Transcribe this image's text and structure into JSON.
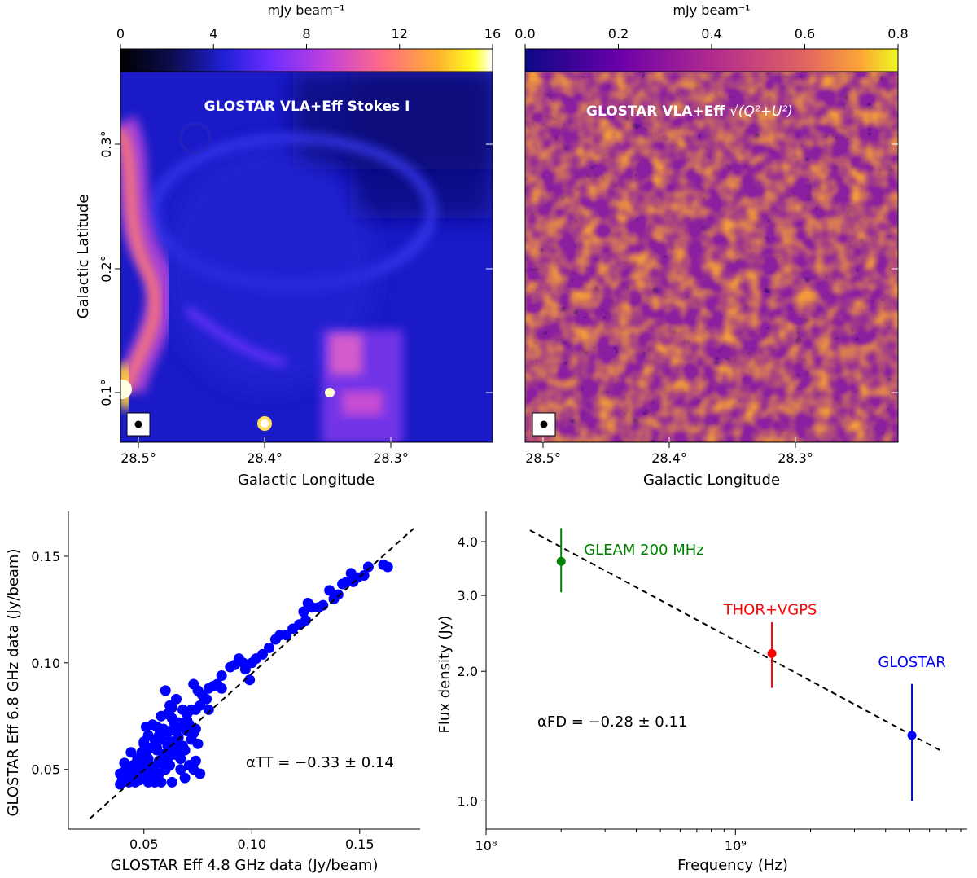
{
  "chart_data": [
    {
      "type": "heatmap",
      "colorbar": {
        "label": "mJy beam⁻¹",
        "ticks": [
          "0",
          "4",
          "8",
          "12",
          "16"
        ],
        "range": [
          0,
          16
        ],
        "colormap": "gnuplot2",
        "placement": "top"
      },
      "title": "GLOSTAR VLA+Eff Stokes I",
      "xlabel": "Galactic Longitude",
      "ylabel": "Galactic Latitude",
      "xticks": [
        "28.5°",
        "28.4°",
        "28.3°"
      ],
      "yticks": [
        "0.1°",
        "0.2°",
        "0.3°"
      ],
      "beam_marker": true
    },
    {
      "type": "heatmap",
      "colorbar": {
        "label": "mJy beam⁻¹",
        "ticks": [
          "0.0",
          "0.2",
          "0.4",
          "0.6",
          "0.8"
        ],
        "range": [
          0,
          0.8
        ],
        "colormap": "plasma",
        "placement": "top"
      },
      "title": "GLOSTAR VLA+Eff",
      "title_math": "√(Q²+U²)",
      "xlabel": "Galactic Longitude",
      "xticks": [
        "28.5°",
        "28.4°",
        "28.3°"
      ],
      "beam_marker": true
    },
    {
      "type": "scatter",
      "xlabel": "GLOSTAR Eff 4.8 GHz data (Jy/beam)",
      "ylabel": "GLOSTAR Eff 6.8 GHz data (Jy/beam)",
      "xlim": [
        0.015,
        0.178
      ],
      "ylim": [
        0.022,
        0.171
      ],
      "xticks": [
        "0.05",
        "0.10",
        "0.15"
      ],
      "yticks": [
        "0.05",
        "0.10",
        "0.15"
      ],
      "annotation": "αTT = −0.33 ± 0.14",
      "fit_line": {
        "x": [
          0.025,
          0.175
        ],
        "y": [
          0.027,
          0.163
        ],
        "style": "dashed"
      },
      "point_color": "#0000ff",
      "points": [
        [
          0.163,
          0.145
        ],
        [
          0.161,
          0.146
        ],
        [
          0.154,
          0.145
        ],
        [
          0.152,
          0.141
        ],
        [
          0.149,
          0.14
        ],
        [
          0.146,
          0.142
        ],
        [
          0.147,
          0.138
        ],
        [
          0.144,
          0.138
        ],
        [
          0.142,
          0.137
        ],
        [
          0.14,
          0.132
        ],
        [
          0.138,
          0.13
        ],
        [
          0.136,
          0.134
        ],
        [
          0.133,
          0.127
        ],
        [
          0.131,
          0.126
        ],
        [
          0.128,
          0.126
        ],
        [
          0.126,
          0.128
        ],
        [
          0.124,
          0.124
        ],
        [
          0.125,
          0.12
        ],
        [
          0.122,
          0.118
        ],
        [
          0.119,
          0.116
        ],
        [
          0.116,
          0.113
        ],
        [
          0.113,
          0.113
        ],
        [
          0.111,
          0.111
        ],
        [
          0.108,
          0.107
        ],
        [
          0.105,
          0.104
        ],
        [
          0.102,
          0.102
        ],
        [
          0.1,
          0.1
        ],
        [
          0.097,
          0.097
        ],
        [
          0.099,
          0.092
        ],
        [
          0.096,
          0.1
        ],
        [
          0.094,
          0.102
        ],
        [
          0.092,
          0.099
        ],
        [
          0.09,
          0.098
        ],
        [
          0.086,
          0.094
        ],
        [
          0.084,
          0.09
        ],
        [
          0.082,
          0.089
        ],
        [
          0.08,
          0.088
        ],
        [
          0.077,
          0.085
        ],
        [
          0.075,
          0.087
        ],
        [
          0.073,
          0.09
        ],
        [
          0.076,
          0.08
        ],
        [
          0.079,
          0.083
        ],
        [
          0.086,
          0.088
        ],
        [
          0.08,
          0.078
        ],
        [
          0.074,
          0.078
        ],
        [
          0.072,
          0.078
        ],
        [
          0.07,
          0.073
        ],
        [
          0.07,
          0.068
        ],
        [
          0.068,
          0.078
        ],
        [
          0.066,
          0.072
        ],
        [
          0.065,
          0.068
        ],
        [
          0.063,
          0.074
        ],
        [
          0.063,
          0.063
        ],
        [
          0.062,
          0.08
        ],
        [
          0.06,
          0.087
        ],
        [
          0.058,
          0.075
        ],
        [
          0.059,
          0.069
        ],
        [
          0.061,
          0.061
        ],
        [
          0.057,
          0.066
        ],
        [
          0.056,
          0.059
        ],
        [
          0.055,
          0.064
        ],
        [
          0.054,
          0.071
        ],
        [
          0.053,
          0.06
        ],
        [
          0.052,
          0.055
        ],
        [
          0.051,
          0.057
        ],
        [
          0.05,
          0.062
        ],
        [
          0.05,
          0.053
        ],
        [
          0.049,
          0.058
        ],
        [
          0.048,
          0.05
        ],
        [
          0.047,
          0.055
        ],
        [
          0.046,
          0.048
        ],
        [
          0.045,
          0.052
        ],
        [
          0.045,
          0.045
        ],
        [
          0.044,
          0.058
        ],
        [
          0.043,
          0.05
        ],
        [
          0.042,
          0.047
        ],
        [
          0.041,
          0.053
        ],
        [
          0.04,
          0.045
        ],
        [
          0.04,
          0.044
        ],
        [
          0.039,
          0.048
        ],
        [
          0.039,
          0.043
        ],
        [
          0.041,
          0.049
        ],
        [
          0.043,
          0.044
        ],
        [
          0.046,
          0.044
        ],
        [
          0.048,
          0.045
        ],
        [
          0.05,
          0.046
        ],
        [
          0.052,
          0.044
        ],
        [
          0.054,
          0.046
        ],
        [
          0.055,
          0.05
        ],
        [
          0.057,
          0.048
        ],
        [
          0.058,
          0.053
        ],
        [
          0.06,
          0.05
        ],
        [
          0.061,
          0.055
        ],
        [
          0.062,
          0.052
        ],
        [
          0.064,
          0.057
        ],
        [
          0.066,
          0.058
        ],
        [
          0.068,
          0.061
        ],
        [
          0.069,
          0.059
        ],
        [
          0.071,
          0.052
        ],
        [
          0.072,
          0.064
        ],
        [
          0.073,
          0.05
        ],
        [
          0.074,
          0.069
        ],
        [
          0.065,
          0.062
        ],
        [
          0.056,
          0.06
        ],
        [
          0.053,
          0.052
        ],
        [
          0.049,
          0.049
        ],
        [
          0.047,
          0.051
        ],
        [
          0.044,
          0.047
        ],
        [
          0.042,
          0.05
        ],
        [
          0.058,
          0.064
        ],
        [
          0.06,
          0.066
        ],
        [
          0.062,
          0.068
        ],
        [
          0.064,
          0.072
        ],
        [
          0.066,
          0.065
        ],
        [
          0.067,
          0.07
        ],
        [
          0.07,
          0.076
        ],
        [
          0.071,
          0.071
        ],
        [
          0.073,
          0.067
        ],
        [
          0.075,
          0.062
        ],
        [
          0.067,
          0.055
        ],
        [
          0.063,
          0.058
        ],
        [
          0.059,
          0.057
        ],
        [
          0.057,
          0.054
        ],
        [
          0.055,
          0.044
        ],
        [
          0.058,
          0.044
        ],
        [
          0.063,
          0.044
        ],
        [
          0.069,
          0.046
        ],
        [
          0.076,
          0.048
        ],
        [
          0.074,
          0.054
        ],
        [
          0.067,
          0.05
        ],
        [
          0.052,
          0.066
        ],
        [
          0.05,
          0.063
        ],
        [
          0.051,
          0.07
        ],
        [
          0.056,
          0.07
        ],
        [
          0.061,
          0.076
        ],
        [
          0.063,
          0.079
        ],
        [
          0.065,
          0.083
        ],
        [
          0.052,
          0.049
        ],
        [
          0.045,
          0.047
        ]
      ]
    },
    {
      "type": "scatter",
      "scale": "log-log",
      "xlabel": "Frequency (Hz)",
      "ylabel": "Flux density (Jy)",
      "xlim": [
        100000000.0,
        8500000000.0
      ],
      "ylim": [
        0.86,
        4.7
      ],
      "xticks": [
        {
          "value": 100000000.0,
          "label": "10⁸"
        },
        {
          "value": 1000000000.0,
          "label": "10⁹"
        }
      ],
      "yticks": [
        "1.0",
        "2.0",
        "3.0",
        "4.0"
      ],
      "annotation": "αFD = −0.28 ± 0.11",
      "fit_line": {
        "x": [
          150000000.0,
          6800000000.0
        ],
        "y": [
          4.25,
          1.3
        ],
        "style": "dashed"
      },
      "points": [
        {
          "name": "GLEAM 200 MHz",
          "x": 200000000.0,
          "y": 3.6,
          "yerr": [
            3.05,
            4.3
          ],
          "color": "#008000"
        },
        {
          "name": "THOR+VGPS",
          "x": 1400000000.0,
          "y": 2.2,
          "yerr": [
            1.83,
            2.6
          ],
          "color": "#ff0000"
        },
        {
          "name": "GLOSTAR",
          "x": 5100000000.0,
          "y": 1.42,
          "yerr": [
            1.0,
            1.87
          ],
          "color": "#0000ff"
        }
      ]
    }
  ]
}
